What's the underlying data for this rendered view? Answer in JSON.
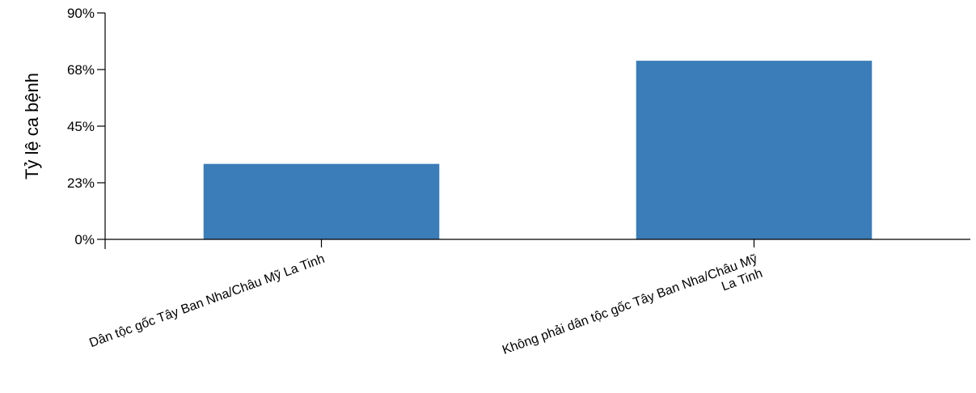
{
  "chart_data": {
    "type": "bar",
    "categories": [
      [
        "Dân tộc gốc Tây Ban Nha/Châu Mỹ La Tinh"
      ],
      [
        "Không phải dân tộc gốc Tây Ban Nha/Châu Mỹ",
        "La Tinh"
      ]
    ],
    "values": [
      30,
      71
    ],
    "ylabel": "Tỷ lệ ca bệnh",
    "yticks": [
      0,
      22.5,
      45,
      67.5,
      90
    ],
    "ytick_labels": [
      "0%",
      "23%",
      "45%",
      "68%",
      "90%"
    ],
    "ylim": [
      0,
      90
    ],
    "bar_color": "#3a7db8",
    "grid": false,
    "legend": "none"
  }
}
